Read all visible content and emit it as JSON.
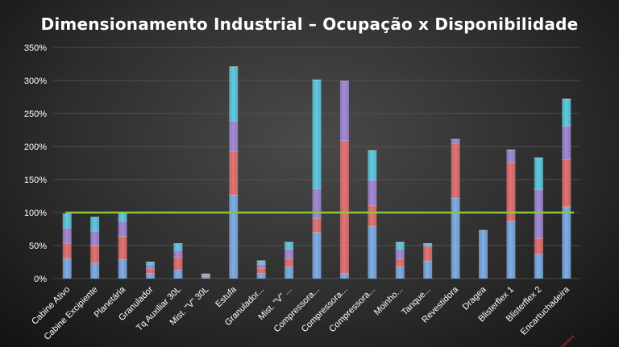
{
  "slide": {
    "title": "Dimensionamento Industrial – Ocupação x Disponibilidade"
  },
  "colors": {
    "background": "#2e2e2e",
    "axis_text": "#ffffff",
    "grid": "#5a5a5a",
    "segment_1": "#7faee6",
    "segment_2": "#e57373",
    "segment_3": "#a38bd6",
    "segment_4": "#5fcbe0",
    "reference_line": "#8cc63f",
    "annotation": "#e03020"
  },
  "chart_data": {
    "type": "bar",
    "stacked": true,
    "title": "Dimensionamento Industrial – Ocupação x Disponibilidade",
    "xlabel": "",
    "ylabel": "",
    "ylim": [
      0,
      350
    ],
    "yticks": [
      "0%",
      "50%",
      "100%",
      "150%",
      "200%",
      "250%",
      "300%",
      "350%"
    ],
    "grid": true,
    "legend": "none",
    "categories": [
      "Cabine Ativo",
      "Cabine Excipiente",
      "Planetária",
      "Granulador",
      "Tq Auxiliar 30L",
      "Mist. \"V\" 30L",
      "Estufa",
      "Granulador...",
      "Mist. \"V\" ...",
      "Compressora...",
      "Compressora...",
      "Compressora...",
      "Moinho...",
      "Tanque...",
      "Revestidora",
      "Dragea",
      "Blisterflex 1",
      "Blisterflex 2",
      "Encartuchadeira"
    ],
    "series": [
      {
        "values": [
          30,
          24,
          29,
          8,
          13,
          3,
          127,
          8,
          18,
          70,
          8,
          79,
          18,
          27,
          122,
          73,
          87,
          37,
          109
        ]
      },
      {
        "values": [
          24,
          26,
          35,
          7,
          20,
          2,
          65,
          8,
          12,
          21,
          201,
          32,
          12,
          22,
          83,
          0,
          89,
          24,
          71
        ]
      },
      {
        "values": [
          23,
          22,
          23,
          6,
          10,
          1,
          47,
          6,
          15,
          45,
          90,
          38,
          15,
          2,
          6,
          0,
          19,
          74,
          51
        ]
      },
      {
        "values": [
          21,
          21,
          12,
          4,
          10,
          1,
          82,
          5,
          10,
          165,
          0,
          45,
          10,
          2,
          0,
          0,
          0,
          48,
          41
        ]
      }
    ],
    "reference_line": 100,
    "annotations": [
      {
        "text": "Ø 1 semana",
        "category": "Encartuchadeira"
      }
    ]
  }
}
